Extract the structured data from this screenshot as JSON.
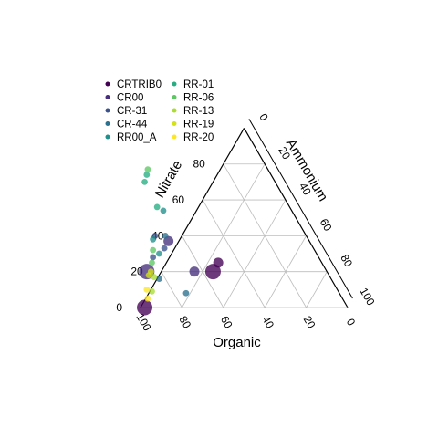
{
  "chart_data": {
    "type": "scatter",
    "subtype": "ternary",
    "axes": {
      "left": {
        "label": "Nitrate",
        "ticks": [
          "0",
          "20",
          "40",
          "60",
          "80"
        ]
      },
      "right": {
        "label": "Ammonium",
        "ticks": [
          "0",
          "20",
          "40",
          "60",
          "80",
          "100"
        ]
      },
      "bottom": {
        "label": "Organic",
        "ticks": [
          "100",
          "80",
          "60",
          "40",
          "20",
          "0"
        ]
      }
    },
    "grid": true,
    "legend_position": "top-left",
    "series": [
      {
        "name": "CRTRIB0",
        "color": "#440154",
        "points": [
          {
            "organic": 98,
            "nitrate": 0,
            "ammonium": 2,
            "size": "large"
          },
          {
            "organic": 55,
            "nitrate": 20,
            "ammonium": 25,
            "size": "large"
          },
          {
            "organic": 50,
            "nitrate": 25,
            "ammonium": 25,
            "size": "medium"
          }
        ]
      },
      {
        "name": "CR00",
        "color": "#472F7D",
        "points": [
          {
            "organic": 87,
            "nitrate": 20,
            "ammonium": -7,
            "size": "large"
          },
          {
            "organic": 64,
            "nitrate": 20,
            "ammonium": 16,
            "size": "medium"
          },
          {
            "organic": 68,
            "nitrate": 37,
            "ammonium": -5,
            "size": "medium"
          }
        ]
      },
      {
        "name": "CR-31",
        "color": "#3B518B",
        "points": [
          {
            "organic": 80,
            "nitrate": 28,
            "ammonium": -8,
            "size": "small"
          },
          {
            "organic": 73,
            "nitrate": 40,
            "ammonium": -13,
            "size": "small"
          },
          {
            "organic": 72,
            "nitrate": 33,
            "ammonium": -5,
            "size": "small"
          }
        ]
      },
      {
        "name": "CR-44",
        "color": "#2C718E",
        "points": [
          {
            "organic": 74,
            "nitrate": 8,
            "ammonium": 18,
            "size": "small"
          },
          {
            "organic": 83,
            "nitrate": 16,
            "ammonium": 1,
            "size": "small"
          },
          {
            "organic": 68,
            "nitrate": 40,
            "ammonium": -8,
            "size": "small"
          }
        ]
      },
      {
        "name": "RR00_A",
        "color": "#21908C",
        "points": [
          {
            "organic": 75,
            "nitrate": 38,
            "ammonium": -13,
            "size": "small"
          },
          {
            "organic": 76,
            "nitrate": 30,
            "ammonium": -6,
            "size": "small"
          },
          {
            "organic": 62,
            "nitrate": 54,
            "ammonium": -16,
            "size": "small"
          }
        ]
      },
      {
        "name": "RR-01",
        "color": "#27AD81",
        "points": [
          {
            "organic": 64,
            "nitrate": 56,
            "ammonium": -20,
            "size": "small"
          },
          {
            "organic": 60,
            "nitrate": 74,
            "ammonium": -34,
            "size": "small"
          },
          {
            "organic": 63,
            "nitrate": 70,
            "ammonium": -33,
            "size": "small"
          }
        ]
      },
      {
        "name": "RR-06",
        "color": "#5DC863",
        "points": [
          {
            "organic": 78,
            "nitrate": 32,
            "ammonium": -10,
            "size": "small"
          },
          {
            "organic": 82,
            "nitrate": 25,
            "ammonium": -7,
            "size": "small"
          },
          {
            "organic": 58,
            "nitrate": 77,
            "ammonium": -35,
            "size": "small"
          }
        ]
      },
      {
        "name": "RR-13",
        "color": "#AADC32",
        "points": [
          {
            "organic": 85,
            "nitrate": 17,
            "ammonium": -2,
            "size": "small"
          },
          {
            "organic": 90,
            "nitrate": 9,
            "ammonium": 1,
            "size": "small"
          }
        ]
      },
      {
        "name": "RR-19",
        "color": "#D4E21A",
        "points": [
          {
            "organic": 87,
            "nitrate": 18,
            "ammonium": -5,
            "size": "small"
          },
          {
            "organic": 85,
            "nitrate": 20,
            "ammonium": -5,
            "size": "small"
          }
        ]
      },
      {
        "name": "RR-20",
        "color": "#FDE725",
        "points": [
          {
            "organic": 92,
            "nitrate": 10,
            "ammonium": -2,
            "size": "small"
          },
          {
            "organic": 94,
            "nitrate": 5,
            "ammonium": 1,
            "size": "small"
          }
        ]
      }
    ]
  }
}
